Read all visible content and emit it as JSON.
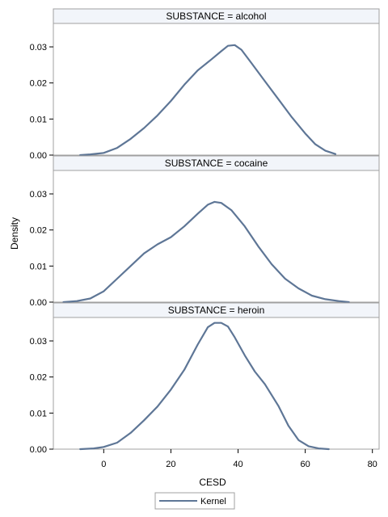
{
  "chart_data": {
    "type": "line",
    "xlabel": "CESD",
    "ylabel": "Density",
    "xlim": [
      -15,
      82
    ],
    "ylim": [
      0,
      0.0365
    ],
    "x_ticks": [
      "0",
      "20",
      "40",
      "60",
      "80"
    ],
    "y_ticks": [
      "0.00",
      "0.01",
      "0.02",
      "0.03"
    ],
    "line_color": "#5E7696",
    "panel_header_color": "#F2F5FA",
    "legend": {
      "position": "bottom-center",
      "entries": [
        "Kernel"
      ]
    },
    "panels": [
      {
        "title": "SUBSTANCE = alcohol",
        "series": [
          {
            "x": [
              -7,
              -4,
              0,
              4,
              8,
              12,
              16,
              20,
              24,
              28,
              32,
              35,
              37,
              39,
              41,
              44,
              48,
              52,
              56,
              60,
              63,
              66,
              69
            ],
            "y": [
              0,
              0.0002,
              0.0006,
              0.002,
              0.0045,
              0.0075,
              0.011,
              0.015,
              0.0195,
              0.0235,
              0.0265,
              0.0288,
              0.0303,
              0.0305,
              0.0292,
              0.0255,
              0.0205,
              0.0155,
              0.0105,
              0.006,
              0.003,
              0.0012,
              0.0003
            ]
          }
        ]
      },
      {
        "title": "SUBSTANCE = cocaine",
        "series": [
          {
            "x": [
              -12,
              -8,
              -4,
              0,
              4,
              8,
              12,
              16,
              20,
              24,
              28,
              31,
              33,
              35,
              38,
              42,
              46,
              50,
              54,
              58,
              62,
              66,
              70,
              73
            ],
            "y": [
              0,
              0.0003,
              0.001,
              0.003,
              0.0065,
              0.01,
              0.0135,
              0.016,
              0.018,
              0.021,
              0.0245,
              0.027,
              0.0278,
              0.0275,
              0.0255,
              0.021,
              0.0155,
              0.0105,
              0.0065,
              0.0038,
              0.0018,
              0.0008,
              0.0003,
              0
            ]
          }
        ]
      },
      {
        "title": "SUBSTANCE = heroin",
        "series": [
          {
            "x": [
              -7,
              -3,
              0,
              4,
              8,
              12,
              16,
              20,
              24,
              28,
              31,
              33,
              35,
              37,
              39,
              42,
              45,
              48,
              52,
              55,
              58,
              61,
              64,
              67
            ],
            "y": [
              0,
              0.0002,
              0.0006,
              0.0018,
              0.0045,
              0.008,
              0.0118,
              0.0165,
              0.022,
              0.029,
              0.0338,
              0.035,
              0.035,
              0.034,
              0.031,
              0.026,
              0.0215,
              0.018,
              0.012,
              0.0065,
              0.0025,
              0.0008,
              0.0002,
              0
            ]
          }
        ]
      }
    ]
  }
}
